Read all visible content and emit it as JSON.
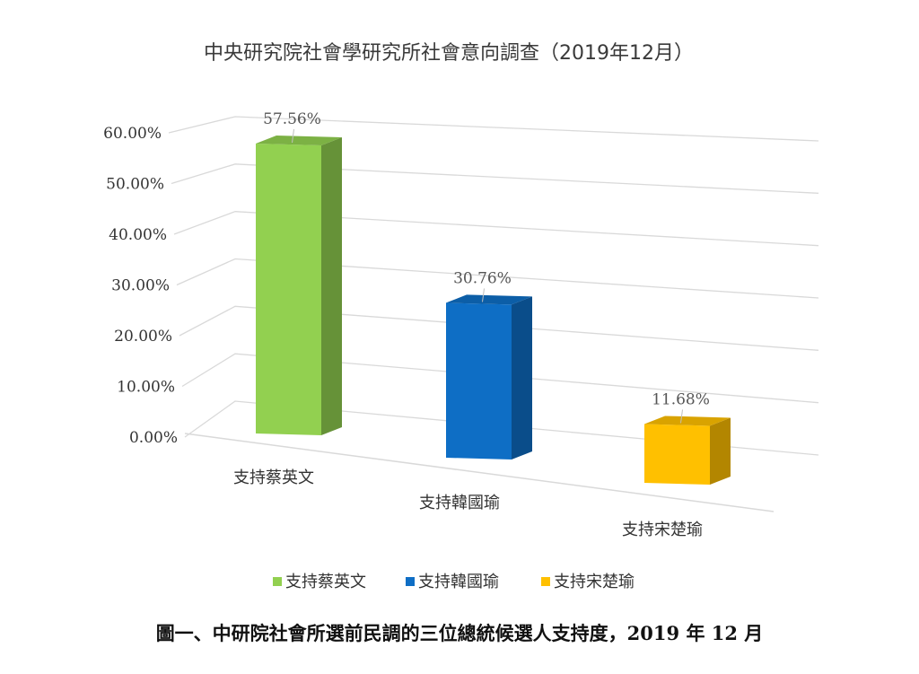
{
  "chart_data": {
    "type": "bar",
    "title": "中央研究院社會學研究所社會意向調查（2019年12月）",
    "categories": [
      "支持蔡英文",
      "支持韓國瑜",
      "支持宋楚瑜"
    ],
    "values": [
      57.56,
      30.76,
      11.68
    ],
    "data_labels": [
      "57.56%",
      "30.76%",
      "11.68%"
    ],
    "colors": [
      "#92d050",
      "#0e6ec5",
      "#ffc000"
    ],
    "ylim": [
      0,
      60
    ],
    "yticks": [
      "0.00%",
      "10.00%",
      "20.00%",
      "30.00%",
      "40.00%",
      "50.00%",
      "60.00%"
    ],
    "grid": true,
    "three_d": true,
    "legend": {
      "position": "bottom",
      "entries": [
        "支持蔡英文",
        "支持韓國瑜",
        "支持宋楚瑜"
      ]
    }
  },
  "caption": "圖一、中研院社會所選前民調的三位總統候選人支持度，2019 年 12 月"
}
